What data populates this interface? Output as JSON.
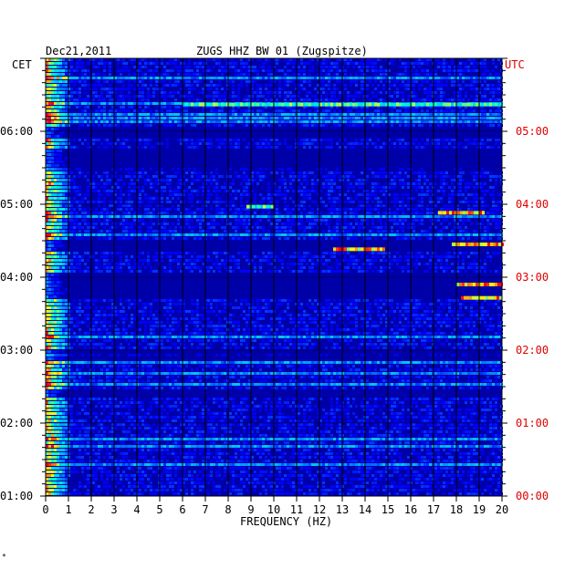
{
  "chart_data": {
    "type": "heatmap",
    "title_left": "Dec21,2011",
    "title_center": "ZUGS HHZ BW 01 (Zugspitze)",
    "left_axis_label": "CET",
    "right_axis_label": "UTC",
    "xlabel": "FREQUENCY (HZ)",
    "x_ticks": [
      "0",
      "1",
      "2",
      "3",
      "4",
      "5",
      "6",
      "7",
      "8",
      "9",
      "10",
      "11",
      "12",
      "13",
      "14",
      "15",
      "16",
      "17",
      "18",
      "19",
      "20"
    ],
    "xlim": [
      0,
      20
    ],
    "y_ticks_cet": [
      "06:00",
      "05:00",
      "04:00",
      "03:00",
      "02:00",
      "01:00"
    ],
    "y_ticks_utc": [
      "05:00",
      "04:00",
      "03:00",
      "02:00",
      "01:00",
      "00:00"
    ],
    "time_range_cet": [
      "01:00",
      "07:00"
    ],
    "colors": {
      "low": "#0000a0",
      "mid": "#00c8ff",
      "high": "#ffff00",
      "max": "#ff0000",
      "utc_text": "#e00000",
      "grid": "#000000"
    },
    "features": [
      {
        "freq_hz": [
          12.6,
          14.8
        ],
        "time_cet": "04:23",
        "intensity": "high"
      },
      {
        "freq_hz": [
          17.8,
          20.0
        ],
        "time_cet": "04:27",
        "intensity": "high"
      },
      {
        "freq_hz": [
          17.2,
          19.2
        ],
        "time_cet": "04:53",
        "intensity": "high"
      },
      {
        "freq_hz": [
          18.0,
          20.0
        ],
        "time_cet": "03:54",
        "intensity": "high"
      },
      {
        "freq_hz": [
          18.2,
          20.0
        ],
        "time_cet": "03:43",
        "intensity": "high"
      },
      {
        "freq_hz": [
          8.8,
          10.0
        ],
        "time_cet": "04:58",
        "intensity": "mid"
      },
      {
        "freq_hz": [
          6.0,
          20.0
        ],
        "time_cet": "06:22",
        "intensity": "mid"
      }
    ]
  }
}
